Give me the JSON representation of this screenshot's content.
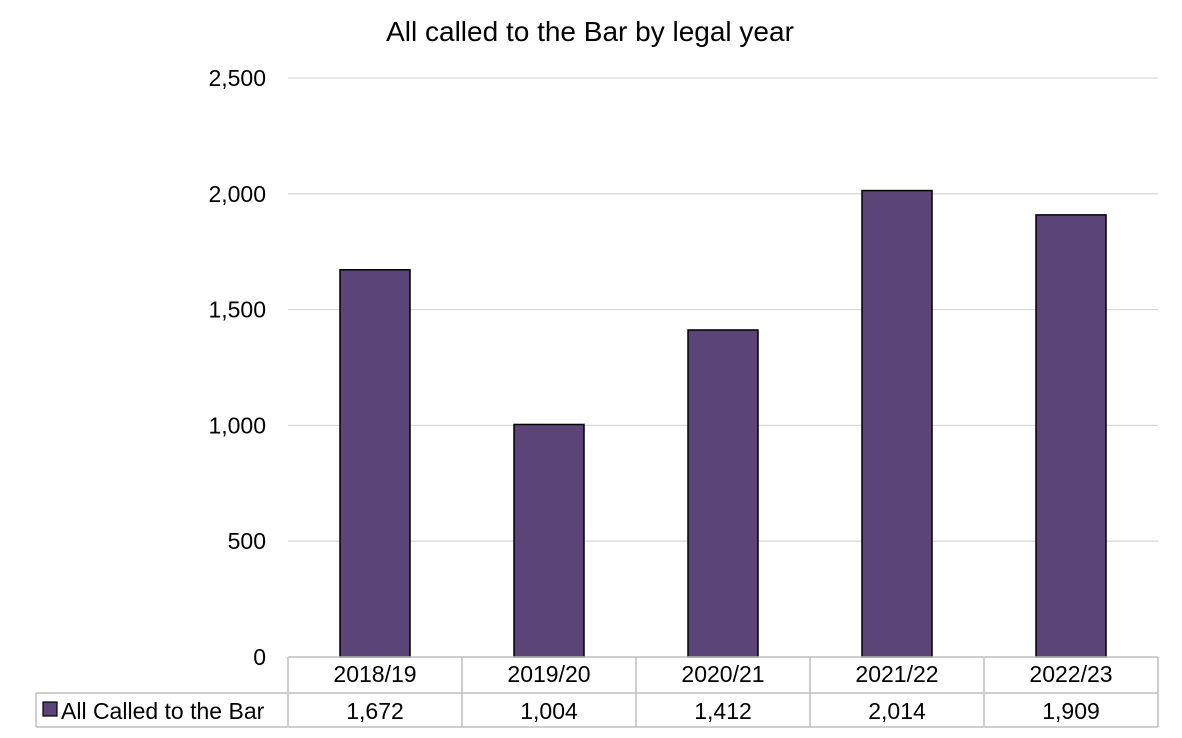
{
  "chart_data": {
    "type": "bar",
    "title": "All called to the Bar by legal year",
    "categories": [
      "2018/19",
      "2019/20",
      "2020/21",
      "2021/22",
      "2022/23"
    ],
    "series": [
      {
        "name": "All Called to the Bar",
        "values": [
          1672,
          1004,
          1412,
          2014,
          1909
        ],
        "color": "#5b4578"
      }
    ],
    "value_labels": [
      "1,672",
      "1,004",
      "1,412",
      "2,014",
      "1,909"
    ],
    "y_ticks": [
      "0",
      "500",
      "1,000",
      "1,500",
      "2,000",
      "2,500"
    ],
    "ylim": [
      0,
      2500
    ],
    "grid": true,
    "legend": "data-table-below",
    "colors": {
      "bar": "#5b4578",
      "bar_border": "#000000",
      "gridline": "#d9d9d9",
      "table_border": "#bfbfbf"
    }
  }
}
